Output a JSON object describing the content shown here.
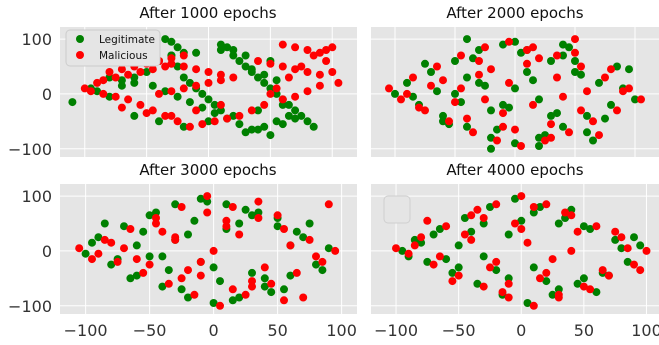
{
  "chart_data": [
    {
      "type": "scatter",
      "title": "After 1000 epochs",
      "xlim": [
        -120,
        120
      ],
      "ylim": [
        -115,
        122
      ],
      "xticks": [],
      "yticks": [
        "100",
        "0",
        "−100"
      ],
      "grid": true,
      "legend": {
        "placement": "top-left",
        "entries": [
          {
            "label": "Legitimate",
            "color": "#008000"
          },
          {
            "label": "Malicious",
            "color": "#ff0000"
          }
        ]
      },
      "series": [
        {
          "name": "Legitimate",
          "color": "#008000",
          "x": [
            -110,
            -95,
            -90,
            -80,
            -70,
            -60,
            -50,
            -40,
            -30,
            -25,
            -20,
            -15,
            -10,
            -5,
            0,
            5,
            10,
            10,
            15,
            20,
            20,
            25,
            30,
            35,
            40,
            45,
            50,
            55,
            60,
            65,
            70,
            75,
            80,
            85,
            -60,
            -40,
            -20,
            0,
            20,
            40,
            60,
            -50,
            -30,
            -10,
            10,
            30,
            50,
            -80,
            -70,
            -60,
            -45,
            -35,
            -25,
            -15,
            -5,
            5,
            15,
            25,
            35,
            45,
            55,
            65,
            -35,
            -30,
            -25,
            -20,
            30,
            40,
            50,
            60,
            70,
            35,
            45,
            55
          ],
          "y": [
            -15,
            10,
            5,
            -5,
            15,
            30,
            40,
            60,
            70,
            50,
            30,
            20,
            10,
            0,
            -10,
            -20,
            -30,
            90,
            85,
            80,
            70,
            60,
            50,
            40,
            30,
            20,
            10,
            0,
            -10,
            -20,
            -30,
            -40,
            -50,
            -60,
            -40,
            -50,
            -60,
            -50,
            -40,
            -30,
            -20,
            60,
            70,
            75,
            80,
            70,
            60,
            30,
            25,
            20,
            15,
            5,
            -5,
            -15,
            -25,
            -35,
            -45,
            -55,
            -65,
            -60,
            -50,
            -40,
            100,
            95,
            85,
            75,
            -70,
            -65,
            -75,
            -55,
            -45,
            45,
            35,
            25
          ]
        },
        {
          "name": "Malicious",
          "color": "#ff0000",
          "x": [
            -100,
            -95,
            -85,
            -75,
            -65,
            -55,
            -45,
            -35,
            -25,
            -15,
            -5,
            5,
            15,
            25,
            35,
            45,
            55,
            65,
            75,
            85,
            95,
            100,
            -60,
            -50,
            -40,
            -30,
            -20,
            -10,
            0,
            10,
            -80,
            -70,
            -60,
            -50,
            -40,
            -30,
            -20,
            60,
            70,
            80,
            90,
            95,
            100,
            105,
            50,
            60,
            70,
            80,
            90,
            -70,
            -50,
            -30,
            -10,
            10,
            -90,
            -85,
            -75,
            -65,
            -55,
            -45,
            -35,
            40,
            50,
            60,
            70,
            80,
            90,
            -40,
            -30,
            -20,
            -10,
            0,
            10,
            20
          ],
          "y": [
            10,
            5,
            0,
            -5,
            -10,
            -20,
            -30,
            -40,
            -50,
            -60,
            -55,
            -50,
            -45,
            -40,
            -30,
            -20,
            10,
            30,
            50,
            70,
            80,
            85,
            70,
            65,
            60,
            55,
            50,
            45,
            40,
            35,
            40,
            45,
            50,
            55,
            60,
            65,
            70,
            90,
            85,
            80,
            75,
            60,
            40,
            20,
            0,
            -10,
            -5,
            5,
            15,
            -25,
            -35,
            -40,
            -30,
            -20,
            20,
            25,
            30,
            35,
            40,
            45,
            50,
            60,
            55,
            50,
            45,
            40,
            35,
            0,
            5,
            10,
            15,
            20,
            25,
            30
          ]
        }
      ]
    },
    {
      "type": "scatter",
      "title": "After 2000 epochs",
      "xlim": [
        -120,
        120
      ],
      "ylim": [
        -115,
        122
      ],
      "xticks": [],
      "yticks": [],
      "grid": true,
      "series": [
        {
          "name": "Legitimate",
          "color": "#008000",
          "x": [
            -100,
            -90,
            -80,
            -70,
            -60,
            -50,
            -40,
            -30,
            -20,
            -10,
            0,
            10,
            20,
            30,
            40,
            50,
            60,
            70,
            80,
            90,
            100,
            -85,
            -65,
            -45,
            -25,
            -5,
            15,
            35,
            55,
            75,
            95,
            -75,
            -55,
            -35,
            -15,
            5,
            25,
            45,
            65,
            85,
            -60,
            -40,
            -20,
            0,
            20,
            40,
            60,
            -50,
            -30,
            -10,
            10,
            30,
            50,
            -40,
            -20,
            0,
            20,
            40
          ],
          "y": [
            0,
            20,
            -20,
            40,
            -40,
            60,
            -60,
            80,
            -80,
            90,
            -90,
            80,
            -80,
            60,
            -60,
            40,
            -40,
            20,
            -20,
            10,
            -10,
            -5,
            5,
            -15,
            15,
            -25,
            25,
            -35,
            35,
            -45,
            45,
            55,
            -55,
            65,
            -65,
            75,
            -75,
            85,
            -85,
            50,
            -50,
            30,
            -30,
            10,
            -10,
            70,
            -70,
            0,
            20,
            -20,
            40,
            -40,
            60,
            100,
            -100,
            95,
            -95,
            90
          ]
        },
        {
          "name": "Malicious",
          "color": "#ff0000",
          "x": [
            -105,
            -95,
            -85,
            -75,
            -65,
            -55,
            -45,
            -35,
            -25,
            -15,
            -5,
            5,
            15,
            25,
            35,
            45,
            55,
            65,
            75,
            85,
            95,
            105,
            -90,
            -70,
            -50,
            -30,
            -10,
            10,
            30,
            50,
            70,
            90,
            -80,
            -60,
            -40,
            -20,
            0,
            20,
            40,
            60,
            80,
            -45,
            -25,
            -5,
            15,
            35,
            55,
            -30,
            -10,
            10,
            30,
            50
          ],
          "y": [
            10,
            -10,
            30,
            -30,
            50,
            -50,
            70,
            -70,
            85,
            -85,
            95,
            -95,
            85,
            -85,
            70,
            -70,
            50,
            -50,
            30,
            -30,
            10,
            -10,
            0,
            15,
            -15,
            35,
            -35,
            55,
            -55,
            75,
            -75,
            5,
            -25,
            25,
            -45,
            45,
            -65,
            65,
            -5,
            5,
            45,
            10,
            -10,
            20,
            -20,
            30,
            -30,
            60,
            -60,
            80,
            -80,
            100
          ]
        }
      ]
    },
    {
      "type": "scatter",
      "title": "After 3000 epochs",
      "xlim": [
        -120,
        112
      ],
      "ylim": [
        -115,
        122
      ],
      "xticks": [
        "−100",
        "−50",
        "0",
        "50",
        "100"
      ],
      "xtick_values": [
        -100,
        -50,
        0,
        50,
        100
      ],
      "yticks": [
        "100",
        "0",
        "−100"
      ],
      "grid": true,
      "series": [
        {
          "name": "Legitimate",
          "color": "#008000",
          "x": [
            -100,
            -90,
            -80,
            -70,
            -60,
            -50,
            -40,
            -30,
            -20,
            -10,
            0,
            10,
            20,
            30,
            40,
            50,
            60,
            70,
            80,
            90,
            -95,
            -75,
            -55,
            -35,
            -15,
            5,
            25,
            45,
            65,
            85,
            -85,
            -65,
            -45,
            -25,
            -5,
            15,
            35,
            55,
            75,
            -60,
            -40,
            -20,
            0,
            20,
            40,
            60,
            -50,
            -30,
            -10,
            10,
            30,
            50
          ],
          "y": [
            -5,
            25,
            -25,
            45,
            -45,
            65,
            -65,
            85,
            -85,
            95,
            -95,
            85,
            -85,
            65,
            -65,
            45,
            -45,
            25,
            -25,
            5,
            15,
            -15,
            35,
            -35,
            55,
            -55,
            75,
            -75,
            35,
            -35,
            50,
            -50,
            70,
            -70,
            90,
            -90,
            70,
            -70,
            50,
            10,
            -10,
            30,
            -30,
            50,
            -50,
            10,
            -10,
            20,
            -20,
            40,
            -40,
            60
          ]
        },
        {
          "name": "Malicious",
          "color": "#ff0000",
          "x": [
            -105,
            -95,
            -85,
            -75,
            -65,
            -55,
            -45,
            -35,
            -25,
            -15,
            -5,
            5,
            15,
            25,
            35,
            45,
            55,
            65,
            75,
            85,
            95,
            -90,
            -70,
            -50,
            -30,
            -10,
            10,
            30,
            50,
            70,
            90,
            -80,
            -60,
            -40,
            -20,
            0,
            20,
            40,
            60,
            80,
            -45,
            -25,
            -5,
            15,
            35,
            55,
            -30,
            -10,
            10,
            30
          ],
          "y": [
            5,
            -15,
            20,
            -20,
            40,
            -40,
            60,
            -60,
            80,
            -80,
            100,
            -100,
            80,
            -80,
            60,
            -60,
            40,
            -40,
            20,
            -20,
            0,
            -5,
            5,
            -25,
            25,
            -45,
            45,
            -65,
            65,
            -85,
            85,
            15,
            -15,
            35,
            -35,
            0,
            30,
            -30,
            10,
            -10,
            50,
            -50,
            70,
            -70,
            90,
            -90,
            20,
            -20,
            55,
            -55
          ]
        }
      ]
    },
    {
      "type": "scatter",
      "title": "After 4000 epochs",
      "xlim": [
        -120,
        110
      ],
      "ylim": [
        -115,
        122
      ],
      "xticks": [
        "−100",
        "−50",
        "0",
        "50",
        "100"
      ],
      "xtick_values": [
        -100,
        -50,
        0,
        50,
        100
      ],
      "yticks": [],
      "grid": true,
      "legend": {
        "placement": "top-left",
        "entries": []
      },
      "series": [
        {
          "name": "Legitimate",
          "color": "#008000",
          "x": [
            -95,
            -85,
            -75,
            -65,
            -55,
            -45,
            -35,
            -25,
            -15,
            -5,
            5,
            15,
            25,
            35,
            45,
            55,
            65,
            75,
            85,
            95,
            -90,
            -70,
            -50,
            -30,
            -10,
            10,
            30,
            50,
            70,
            90,
            -80,
            -60,
            -40,
            -20,
            0,
            20,
            40,
            60,
            80,
            -50,
            -30,
            -10,
            10,
            30,
            50
          ],
          "y": [
            0,
            20,
            -20,
            40,
            -40,
            60,
            -60,
            80,
            -80,
            95,
            -95,
            80,
            -80,
            60,
            -60,
            40,
            -40,
            20,
            -20,
            10,
            -10,
            30,
            -30,
            50,
            -50,
            70,
            -70,
            45,
            -45,
            25,
            15,
            -15,
            35,
            -35,
            55,
            -55,
            75,
            -75,
            5,
            10,
            -10,
            30,
            -30,
            50,
            -50
          ]
        },
        {
          "name": "Malicious",
          "color": "#ff0000",
          "x": [
            -100,
            -90,
            -80,
            -70,
            -60,
            -50,
            -40,
            -30,
            -20,
            -10,
            0,
            10,
            20,
            30,
            40,
            50,
            60,
            70,
            80,
            90,
            100,
            -85,
            -65,
            -45,
            -25,
            -5,
            15,
            35,
            55,
            75,
            95,
            -75,
            -55,
            -35,
            -15,
            5,
            25,
            45,
            65,
            85,
            -40,
            -20,
            0,
            20,
            40,
            -30,
            -10,
            10,
            30
          ],
          "y": [
            5,
            -5,
            25,
            -25,
            45,
            -45,
            65,
            -65,
            85,
            -85,
            100,
            -100,
            85,
            -85,
            65,
            -65,
            45,
            -45,
            25,
            -25,
            0,
            10,
            -10,
            30,
            -30,
            50,
            -50,
            70,
            -70,
            35,
            -35,
            55,
            -55,
            75,
            -75,
            15,
            -15,
            35,
            -35,
            5,
            20,
            -20,
            40,
            -40,
            0,
            60,
            -60,
            80,
            -80
          ]
        }
      ]
    }
  ]
}
